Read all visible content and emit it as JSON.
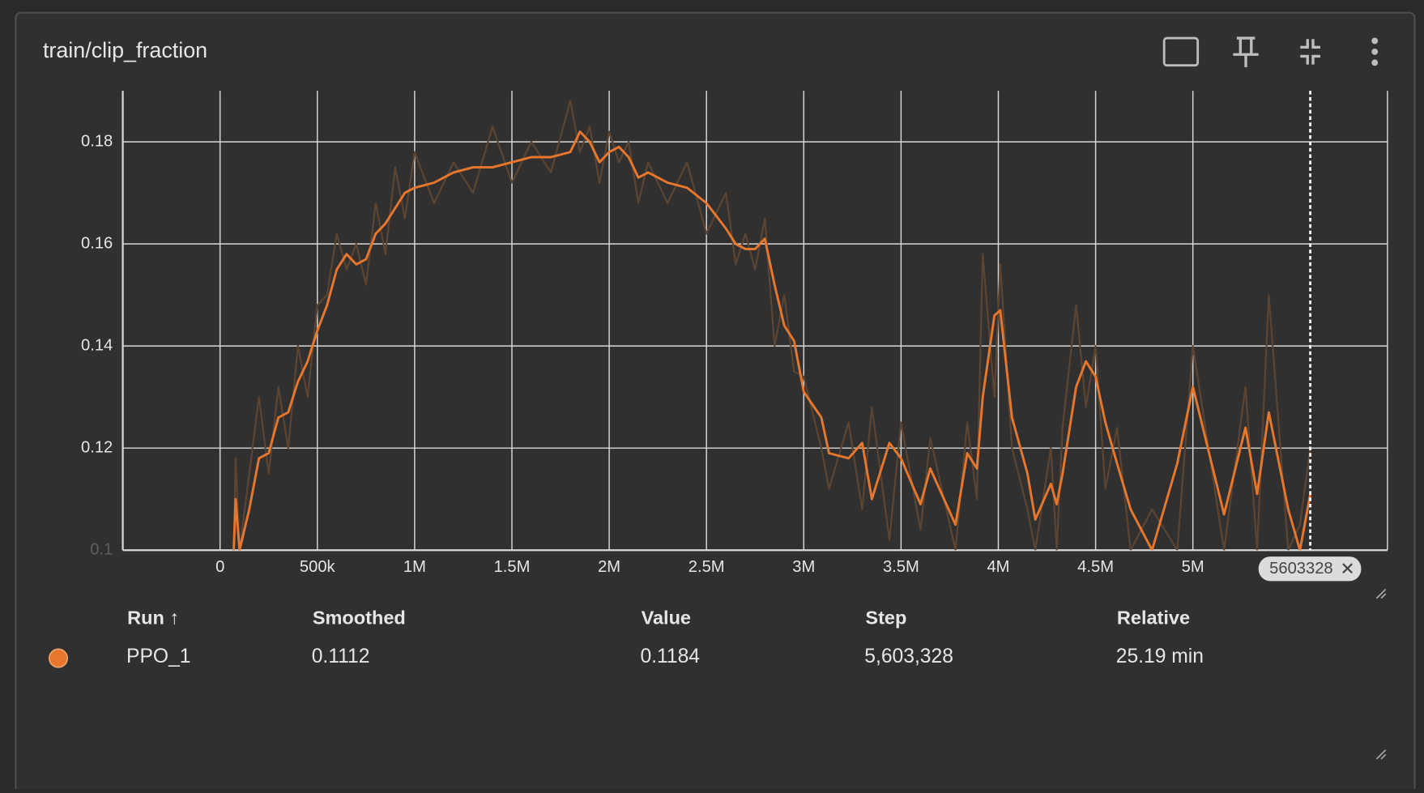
{
  "card": {
    "title": "train/clip_fraction"
  },
  "chart_data": {
    "type": "line",
    "x": [
      70000,
      80000,
      100000,
      150000,
      200000,
      250000,
      300000,
      350000,
      400000,
      450000,
      500000,
      550000,
      600000,
      650000,
      700000,
      750000,
      800000,
      850000,
      900000,
      950000,
      1000000,
      1100000,
      1200000,
      1300000,
      1400000,
      1500000,
      1600000,
      1700000,
      1800000,
      1850000,
      1900000,
      1950000,
      2000000,
      2050000,
      2100000,
      2150000,
      2200000,
      2300000,
      2400000,
      2500000,
      2600000,
      2650000,
      2700000,
      2750000,
      2800000,
      2850000,
      2900000,
      2950000,
      3000000,
      3090000,
      3130000,
      3230000,
      3300000,
      3350000,
      3440000,
      3500000,
      3600000,
      3650000,
      3780000,
      3840000,
      3890000,
      3920000,
      3980000,
      4010000,
      4070000,
      4150000,
      4190000,
      4270000,
      4300000,
      4330000,
      4400000,
      4450000,
      4500000,
      4550000,
      4610000,
      4680000,
      4790000,
      4920000,
      5000000,
      5160000,
      5270000,
      5330000,
      5390000,
      5490000,
      5550000,
      5603328
    ],
    "series": [
      {
        "name": "PPO_1 raw",
        "color": "#5b4431",
        "values": [
          0.1,
          0.118,
          0.1,
          0.115,
          0.13,
          0.115,
          0.132,
          0.12,
          0.14,
          0.13,
          0.148,
          0.15,
          0.162,
          0.155,
          0.16,
          0.152,
          0.168,
          0.158,
          0.175,
          0.165,
          0.178,
          0.168,
          0.176,
          0.17,
          0.183,
          0.172,
          0.18,
          0.174,
          0.188,
          0.178,
          0.183,
          0.172,
          0.182,
          0.176,
          0.18,
          0.168,
          0.176,
          0.168,
          0.176,
          0.162,
          0.17,
          0.156,
          0.162,
          0.155,
          0.165,
          0.14,
          0.15,
          0.135,
          0.134,
          0.12,
          0.112,
          0.125,
          0.108,
          0.128,
          0.102,
          0.125,
          0.104,
          0.122,
          0.1,
          0.125,
          0.11,
          0.158,
          0.13,
          0.156,
          0.12,
          0.108,
          0.1,
          0.12,
          0.1,
          0.124,
          0.148,
          0.128,
          0.14,
          0.112,
          0.124,
          0.1,
          0.108,
          0.1,
          0.14,
          0.1,
          0.132,
          0.1,
          0.15,
          0.1,
          0.105,
          0.12
        ]
      },
      {
        "name": "PPO_1",
        "color": "#e8772e",
        "values": [
          0.1,
          0.11,
          0.1,
          0.108,
          0.118,
          0.119,
          0.126,
          0.127,
          0.133,
          0.137,
          0.143,
          0.148,
          0.155,
          0.158,
          0.156,
          0.157,
          0.162,
          0.164,
          0.167,
          0.17,
          0.171,
          0.172,
          0.174,
          0.175,
          0.175,
          0.176,
          0.177,
          0.177,
          0.178,
          0.182,
          0.18,
          0.176,
          0.178,
          0.179,
          0.177,
          0.173,
          0.174,
          0.172,
          0.171,
          0.168,
          0.163,
          0.16,
          0.159,
          0.159,
          0.161,
          0.152,
          0.144,
          0.141,
          0.131,
          0.126,
          0.119,
          0.118,
          0.121,
          0.11,
          0.121,
          0.118,
          0.109,
          0.116,
          0.105,
          0.119,
          0.116,
          0.13,
          0.146,
          0.147,
          0.126,
          0.115,
          0.106,
          0.113,
          0.109,
          0.115,
          0.132,
          0.137,
          0.134,
          0.125,
          0.117,
          0.108,
          0.1,
          0.117,
          0.132,
          0.107,
          0.124,
          0.111,
          0.127,
          0.108,
          0.1,
          0.111
        ]
      }
    ],
    "xlim": [
      -500000,
      6000000
    ],
    "ylim": [
      0.1,
      0.19
    ],
    "xticks": [
      0,
      {
        "value": 500000,
        "label": "500k"
      },
      {
        "value": 1000000,
        "label": "1M"
      },
      {
        "value": 1500000,
        "label": "1.5M"
      },
      {
        "value": 2000000,
        "label": "2M"
      },
      {
        "value": 2500000,
        "label": "2.5M"
      },
      {
        "value": 3000000,
        "label": "3M"
      },
      {
        "value": 3500000,
        "label": "3.5M"
      },
      {
        "value": 4000000,
        "label": "4M"
      },
      {
        "value": 4500000,
        "label": "4.5M"
      },
      {
        "value": 5000000,
        "label": "5M"
      }
    ],
    "yticks": [
      0.1,
      0.12,
      0.14,
      0.16,
      0.18
    ],
    "grid": true,
    "cursor_step": 5603328
  },
  "table": {
    "headers": [
      "Run ↑",
      "Smoothed",
      "Value",
      "Step",
      "Relative"
    ],
    "rows": [
      [
        "PPO_1",
        "0.1112",
        "0.1184",
        "5,603,328",
        "25.19 min"
      ]
    ]
  }
}
